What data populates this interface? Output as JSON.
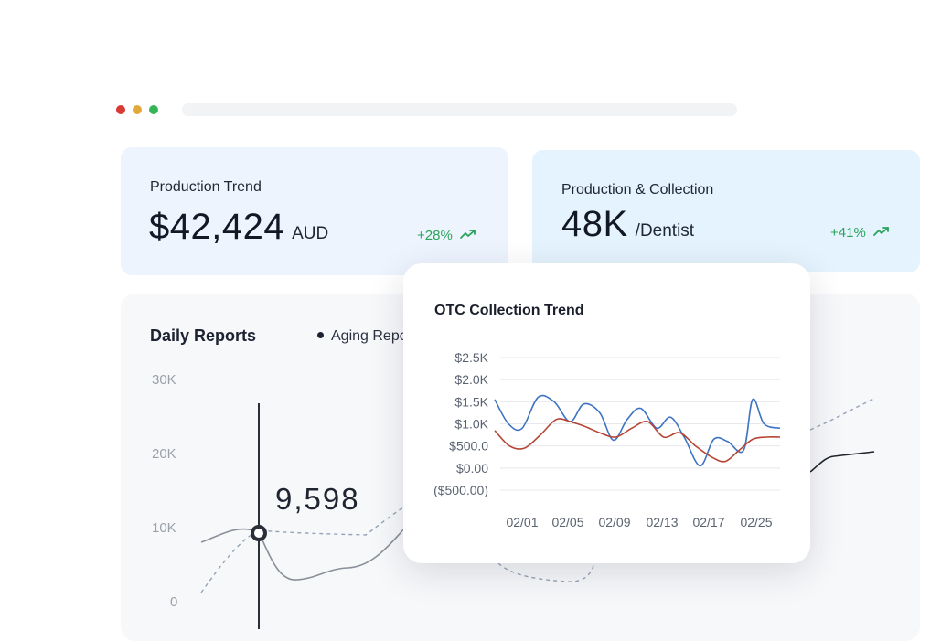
{
  "window": {
    "dots": [
      {
        "name": "close",
        "color": "#d93a33"
      },
      {
        "name": "minimize",
        "color": "#e3a83a"
      },
      {
        "name": "maximize",
        "color": "#35b556"
      }
    ]
  },
  "cards": {
    "production_trend": {
      "title": "Production Trend",
      "value": "$42,424",
      "unit": "AUD",
      "delta": "+28%",
      "trend_icon": "trend-up-icon"
    },
    "production_collection": {
      "title": "Production & Collection",
      "value": "48K",
      "unit": "/Dentist",
      "delta": "+41%",
      "trend_icon": "trend-up-icon"
    }
  },
  "daily_reports": {
    "title": "Daily Reports",
    "legend_label": "Aging Repo",
    "y_ticks": [
      "30K",
      "20K",
      "10K",
      "0"
    ],
    "readout": "9,598"
  },
  "chart_data": {
    "type": "line",
    "title": "OTC Collection Trend",
    "x_ticks": [
      "02/01",
      "02/05",
      "02/09",
      "02/13",
      "02/17",
      "02/25"
    ],
    "y_ticks": [
      "$2.5K",
      "$2.0K",
      "$1.5K",
      "$1.0K",
      "$500.0",
      "$0.00",
      "($500.00)"
    ],
    "ylim": [
      -500,
      2500
    ],
    "grid": true,
    "x_index_range": [
      1,
      26
    ],
    "series": [
      {
        "color": "#3d73c2",
        "x": [
          1,
          2.2,
          3.4,
          4.8,
          6.2,
          7.6,
          8.8,
          10.2,
          11.4,
          12.6,
          13.8,
          15.2,
          16.4,
          17.6,
          19,
          20.2,
          21.4,
          22.8,
          23.6,
          24.6,
          26
        ],
        "y": [
          1550,
          1000,
          900,
          1600,
          1500,
          1050,
          1450,
          1250,
          630,
          1100,
          1350,
          900,
          1150,
          700,
          50,
          650,
          600,
          400,
          1550,
          1000,
          900
        ]
      },
      {
        "color": "#b54434",
        "x": [
          1,
          2.3,
          3.6,
          5,
          6.4,
          7.6,
          8.8,
          10.2,
          11.6,
          13,
          14.4,
          15.8,
          17.2,
          18.6,
          20,
          21.2,
          22.4,
          23.6,
          24.8,
          26
        ],
        "y": [
          850,
          500,
          450,
          750,
          1100,
          1050,
          950,
          800,
          700,
          900,
          1050,
          700,
          800,
          500,
          250,
          150,
          400,
          650,
          700,
          700
        ]
      }
    ]
  }
}
